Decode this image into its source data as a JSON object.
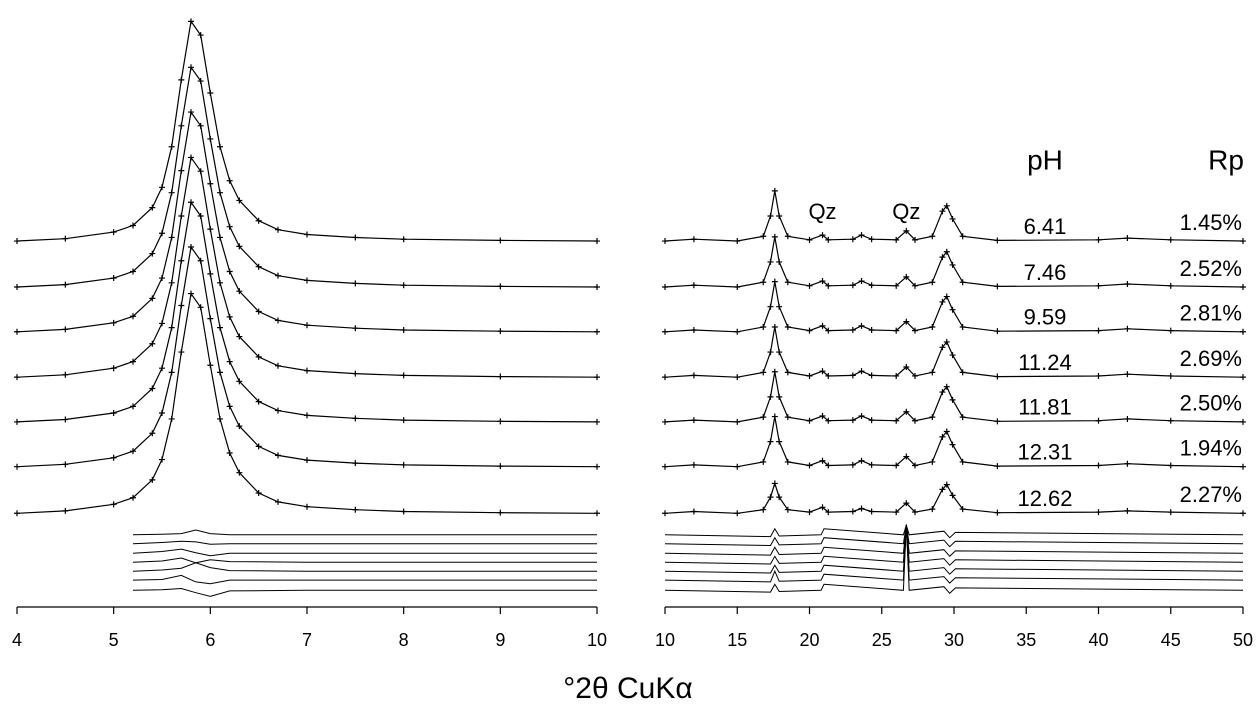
{
  "axis_label": "°2θ CuKα",
  "chart_data": [
    {
      "type": "line",
      "marker": "cross",
      "color": "#000000",
      "xlim": [
        4,
        10
      ],
      "xticks": [
        4,
        5,
        6,
        7,
        8,
        9,
        10
      ],
      "ylim": [
        0,
        100
      ],
      "x": [
        4,
        4.5,
        5,
        5.2,
        5.4,
        5.5,
        5.6,
        5.7,
        5.8,
        5.9,
        6.0,
        6.1,
        6.2,
        6.3,
        6.5,
        6.7,
        7,
        7.5,
        8,
        9,
        10
      ],
      "series": [
        {
          "values": [
            61.3,
            61.7,
            62.8,
            63.9,
            66.9,
            70.3,
            77.1,
            88.3,
            98.1,
            95.8,
            86.1,
            77.1,
            71.4,
            68.1,
            64.7,
            63.2,
            62.4,
            61.9,
            61.6,
            61.4,
            61.3
          ]
        },
        {
          "values": [
            53.6,
            54.0,
            55.1,
            56.2,
            59.2,
            62.6,
            69.4,
            80.6,
            90.4,
            88.1,
            78.4,
            69.4,
            63.7,
            60.4,
            57.0,
            55.5,
            54.7,
            54.2,
            53.9,
            53.7,
            53.6
          ]
        },
        {
          "values": [
            46.1,
            46.5,
            47.6,
            48.7,
            51.7,
            55.1,
            61.9,
            73.1,
            82.9,
            80.6,
            70.9,
            61.9,
            56.2,
            52.9,
            49.5,
            48.0,
            47.2,
            46.7,
            46.4,
            46.2,
            46.1
          ]
        },
        {
          "values": [
            38.5,
            38.9,
            40.0,
            41.1,
            44.1,
            47.5,
            54.3,
            65.5,
            75.3,
            73.0,
            63.3,
            54.3,
            48.6,
            45.3,
            41.9,
            40.4,
            39.6,
            39.1,
            38.8,
            38.6,
            38.5
          ]
        },
        {
          "values": [
            31.0,
            31.4,
            32.5,
            33.6,
            36.6,
            40.0,
            46.8,
            58.0,
            67.8,
            65.5,
            55.8,
            46.8,
            41.1,
            37.8,
            34.4,
            32.9,
            32.1,
            31.6,
            31.3,
            31.1,
            31.0
          ]
        },
        {
          "values": [
            23.5,
            23.9,
            25.0,
            26.1,
            29.1,
            32.5,
            39.3,
            50.5,
            60.3,
            58.0,
            48.3,
            39.3,
            33.6,
            30.3,
            26.9,
            25.4,
            24.6,
            24.1,
            23.8,
            23.6,
            23.5
          ]
        },
        {
          "values": [
            15.7,
            16.1,
            17.2,
            18.3,
            21.3,
            24.7,
            31.5,
            42.7,
            52.5,
            50.2,
            40.5,
            31.5,
            25.8,
            22.5,
            19.1,
            17.6,
            16.8,
            16.3,
            16.0,
            15.8,
            15.7
          ]
        }
      ],
      "residual_x": [
        5.2,
        5.5,
        5.7,
        5.85,
        6.0,
        6.2,
        7,
        10
      ],
      "residuals": [
        [
          12.1,
          12.2,
          12.3,
          12.9,
          12.3,
          12.1,
          12.1,
          12.1
        ],
        [
          10.6,
          10.8,
          11.0,
          10.9,
          10.5,
          10.6,
          10.6,
          10.6
        ],
        [
          9.0,
          9.3,
          9.7,
          9.1,
          8.6,
          9.0,
          9.0,
          9.0
        ],
        [
          7.5,
          7.7,
          8.2,
          7.4,
          7.9,
          7.6,
          7.5,
          7.5
        ],
        [
          6.0,
          6.2,
          6.5,
          7.4,
          6.6,
          6.1,
          6.0,
          6.0
        ],
        [
          4.5,
          4.6,
          5.3,
          4.2,
          3.9,
          4.5,
          4.5,
          4.5
        ],
        [
          2.8,
          2.9,
          3.1,
          2.4,
          1.8,
          2.7,
          2.8,
          2.8
        ]
      ]
    },
    {
      "type": "line",
      "marker": "cross",
      "color": "#000000",
      "xlim": [
        10,
        50
      ],
      "xticks": [
        10,
        15,
        20,
        25,
        30,
        35,
        40,
        45,
        50
      ],
      "ylim": [
        0,
        100
      ],
      "column_headers": [
        "pH",
        "Rp"
      ],
      "annotations": [
        {
          "text": "Qz",
          "x": 20.9,
          "y": 66.0
        },
        {
          "text": "Qz",
          "x": 26.7,
          "y": 66.0
        }
      ],
      "x": [
        10,
        12,
        15,
        16.8,
        17.3,
        17.6,
        17.9,
        18.5,
        20,
        20.9,
        21.3,
        23,
        23.6,
        24.3,
        26,
        26.7,
        27.3,
        28.5,
        29.2,
        29.5,
        29.9,
        30.6,
        33,
        40,
        42,
        45,
        50
      ],
      "series": [
        {
          "ph": 6.41,
          "rp": "1.45%",
          "values": [
            61.3,
            61.6,
            61.3,
            62.1,
            65.5,
            69.7,
            65.5,
            62.1,
            61.5,
            62.3,
            61.5,
            61.6,
            62.3,
            61.6,
            61.5,
            63.0,
            61.5,
            62.1,
            66.3,
            67.2,
            65.0,
            62.1,
            61.4,
            61.5,
            61.8,
            61.5,
            61.3
          ]
        },
        {
          "ph": 7.46,
          "rp": "2.52%",
          "values": [
            53.6,
            53.9,
            53.6,
            54.4,
            57.8,
            62.0,
            57.8,
            54.4,
            53.8,
            54.6,
            53.8,
            53.9,
            54.6,
            53.9,
            53.8,
            55.3,
            53.8,
            54.4,
            58.6,
            59.5,
            57.3,
            54.4,
            53.7,
            53.8,
            54.1,
            53.8,
            53.6
          ]
        },
        {
          "ph": 9.59,
          "rp": "2.81%",
          "values": [
            46.1,
            46.4,
            46.1,
            46.9,
            50.3,
            54.5,
            50.3,
            46.9,
            46.3,
            47.1,
            46.3,
            46.4,
            47.1,
            46.4,
            46.3,
            47.8,
            46.3,
            46.9,
            51.1,
            52.0,
            49.8,
            46.9,
            46.2,
            46.3,
            46.6,
            46.3,
            46.1
          ]
        },
        {
          "ph": 11.24,
          "rp": "2.69%",
          "values": [
            38.5,
            38.8,
            38.5,
            39.3,
            42.7,
            46.9,
            42.7,
            39.3,
            38.7,
            39.5,
            38.7,
            38.8,
            39.5,
            38.8,
            38.7,
            40.2,
            38.7,
            39.3,
            43.5,
            44.4,
            42.2,
            39.3,
            38.6,
            38.7,
            39.0,
            38.7,
            38.5
          ]
        },
        {
          "ph": 11.81,
          "rp": "2.50%",
          "values": [
            31.0,
            31.3,
            31.0,
            31.8,
            35.2,
            39.4,
            35.2,
            31.8,
            31.2,
            32.0,
            31.2,
            31.3,
            32.0,
            31.3,
            31.2,
            32.7,
            31.2,
            31.8,
            36.0,
            36.9,
            34.7,
            31.8,
            31.1,
            31.2,
            31.5,
            31.2,
            31.0
          ]
        },
        {
          "ph": 12.31,
          "rp": "1.94%",
          "values": [
            23.5,
            23.8,
            23.5,
            24.3,
            27.7,
            31.9,
            27.7,
            24.3,
            23.7,
            24.5,
            23.7,
            23.8,
            24.5,
            23.8,
            23.7,
            25.2,
            23.7,
            24.3,
            28.5,
            29.4,
            27.2,
            24.3,
            23.6,
            23.7,
            24.0,
            23.7,
            23.5
          ]
        },
        {
          "ph": 12.62,
          "rp": "2.27%",
          "values": [
            15.7,
            16.0,
            15.7,
            16.3,
            18.4,
            20.7,
            18.4,
            16.3,
            15.9,
            16.7,
            15.9,
            16.0,
            16.5,
            16.0,
            15.9,
            17.4,
            15.9,
            16.4,
            19.7,
            20.5,
            18.7,
            16.4,
            15.8,
            15.9,
            16.1,
            15.9,
            15.7
          ]
        }
      ],
      "residual_x": [
        10,
        17.3,
        17.6,
        17.9,
        20.8,
        21.0,
        26.5,
        26.7,
        26.9,
        29.3,
        29.7,
        30.1,
        50
      ],
      "residuals": [
        [
          12.1,
          11.8,
          13.1,
          11.9,
          12.1,
          13.1,
          12.1,
          13.7,
          12.1,
          12.7,
          11.6,
          12.5,
          12.1
        ],
        [
          10.6,
          10.3,
          11.6,
          10.4,
          10.6,
          11.6,
          10.6,
          13.7,
          10.6,
          11.2,
          10.1,
          11.0,
          10.6
        ],
        [
          9.0,
          8.7,
          10.0,
          8.8,
          9.0,
          10.0,
          9.0,
          13.7,
          9.0,
          9.6,
          8.5,
          9.4,
          9.0
        ],
        [
          7.5,
          7.2,
          8.5,
          7.3,
          7.5,
          8.5,
          7.5,
          13.7,
          7.5,
          8.1,
          7.0,
          7.9,
          7.5
        ],
        [
          6.0,
          5.7,
          7.0,
          5.8,
          6.0,
          7.0,
          6.0,
          13.7,
          6.0,
          6.6,
          5.5,
          6.4,
          6.0
        ],
        [
          4.5,
          4.2,
          6.0,
          4.3,
          4.5,
          5.5,
          4.5,
          13.7,
          4.5,
          5.1,
          4.0,
          4.9,
          4.5
        ],
        [
          2.8,
          2.5,
          3.8,
          2.6,
          2.8,
          3.8,
          2.8,
          13.7,
          2.8,
          3.4,
          2.3,
          3.2,
          2.8
        ]
      ]
    }
  ]
}
